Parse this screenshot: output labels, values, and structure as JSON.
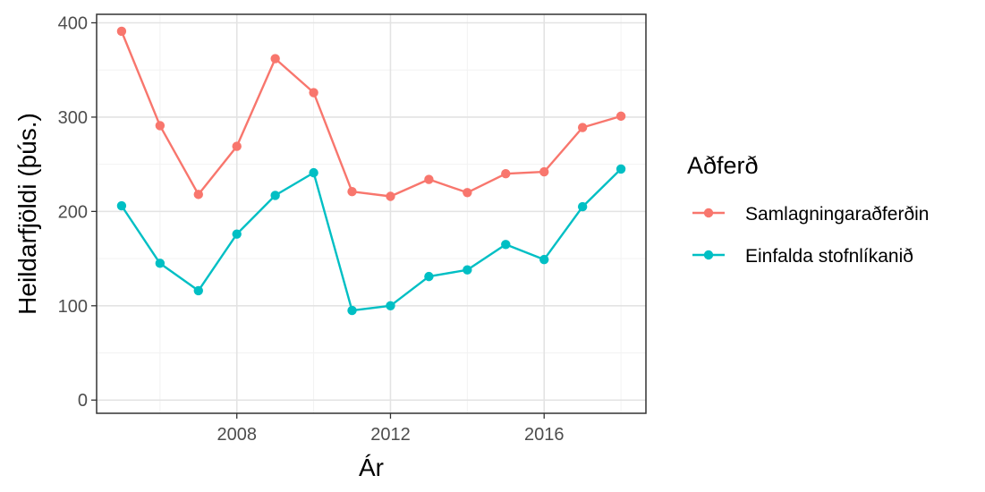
{
  "chart_data": {
    "type": "line",
    "title": "",
    "xlabel": "Ár",
    "ylabel": "Heildarfjöldi (þús.)",
    "x": [
      2005,
      2006,
      2007,
      2008,
      2009,
      2010,
      2011,
      2012,
      2013,
      2014,
      2015,
      2016,
      2017,
      2018
    ],
    "xlim": [
      2004.35,
      2018.65
    ],
    "ylim": [
      -14,
      409
    ],
    "xticks": [
      2008,
      2012,
      2016
    ],
    "xtick_labels": [
      "2008",
      "2012",
      "2016"
    ],
    "yticks": [
      0,
      100,
      200,
      300,
      400
    ],
    "ytick_labels": [
      "0",
      "100",
      "200",
      "300",
      "400"
    ],
    "grid": true,
    "legend": {
      "title": "Aðferð",
      "placement": "right"
    },
    "series": [
      {
        "name": "Samlagningaraðferðin",
        "color": "#f8766d",
        "values": [
          391,
          291,
          218,
          269,
          362,
          326,
          221,
          216,
          234,
          220,
          240,
          242,
          289,
          301
        ]
      },
      {
        "name": "Einfalda stofnlíkanið",
        "color": "#00bfc4",
        "values": [
          206,
          145,
          116,
          176,
          217,
          241,
          95,
          100,
          131,
          138,
          165,
          149,
          205,
          245
        ]
      }
    ]
  }
}
